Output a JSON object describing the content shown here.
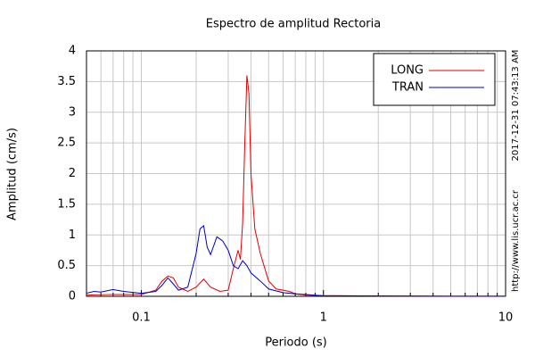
{
  "chart_data": {
    "type": "line",
    "title": "Espectro de amplitud Rectoria",
    "x_label": "Periodo (s)",
    "y_label": "Amplitud (cm/s)",
    "timestamp": "2017-12-31 07:43:13 AM",
    "source": "http://www.lis.ucr.ac.cr",
    "x_log": true,
    "grid": true,
    "legend": "top-right",
    "xlim": [
      0.05,
      10
    ],
    "xticks": [
      0.1,
      1,
      10
    ],
    "ylim": [
      0,
      4
    ],
    "yticks": [
      0,
      0.5,
      1,
      1.5,
      2,
      2.5,
      3,
      3.5,
      4
    ],
    "series": [
      {
        "name": "LONG",
        "color": "#e00000",
        "x": [
          0.05,
          0.07,
          0.1,
          0.12,
          0.13,
          0.14,
          0.15,
          0.16,
          0.18,
          0.2,
          0.22,
          0.24,
          0.27,
          0.3,
          0.32,
          0.34,
          0.35,
          0.36,
          0.37,
          0.38,
          0.39,
          0.4,
          0.42,
          0.45,
          0.5,
          0.55,
          0.6,
          0.65,
          0.7,
          0.8,
          1,
          2,
          5,
          10
        ],
        "values": [
          0.02,
          0.03,
          0.03,
          0.1,
          0.25,
          0.33,
          0.3,
          0.15,
          0.08,
          0.15,
          0.28,
          0.15,
          0.08,
          0.1,
          0.45,
          0.75,
          0.6,
          1.2,
          2.5,
          3.6,
          3.3,
          2.0,
          1.1,
          0.7,
          0.25,
          0.12,
          0.1,
          0.08,
          0.04,
          0.02,
          0.01,
          0.005,
          0.002,
          0.001
        ]
      },
      {
        "name": "TRAN",
        "color": "#0000c0",
        "x": [
          0.05,
          0.055,
          0.06,
          0.07,
          0.08,
          0.1,
          0.12,
          0.13,
          0.14,
          0.15,
          0.16,
          0.18,
          0.2,
          0.21,
          0.22,
          0.23,
          0.24,
          0.26,
          0.28,
          0.3,
          0.32,
          0.34,
          0.36,
          0.38,
          0.4,
          0.45,
          0.5,
          0.6,
          0.7,
          0.8,
          1,
          2,
          5,
          10
        ],
        "values": [
          0.05,
          0.08,
          0.07,
          0.11,
          0.08,
          0.05,
          0.08,
          0.18,
          0.3,
          0.2,
          0.1,
          0.15,
          0.7,
          1.1,
          1.15,
          0.8,
          0.68,
          0.97,
          0.9,
          0.75,
          0.5,
          0.45,
          0.58,
          0.5,
          0.38,
          0.25,
          0.12,
          0.06,
          0.04,
          0.03,
          0.01,
          0.005,
          0.002,
          0.001
        ]
      }
    ]
  }
}
